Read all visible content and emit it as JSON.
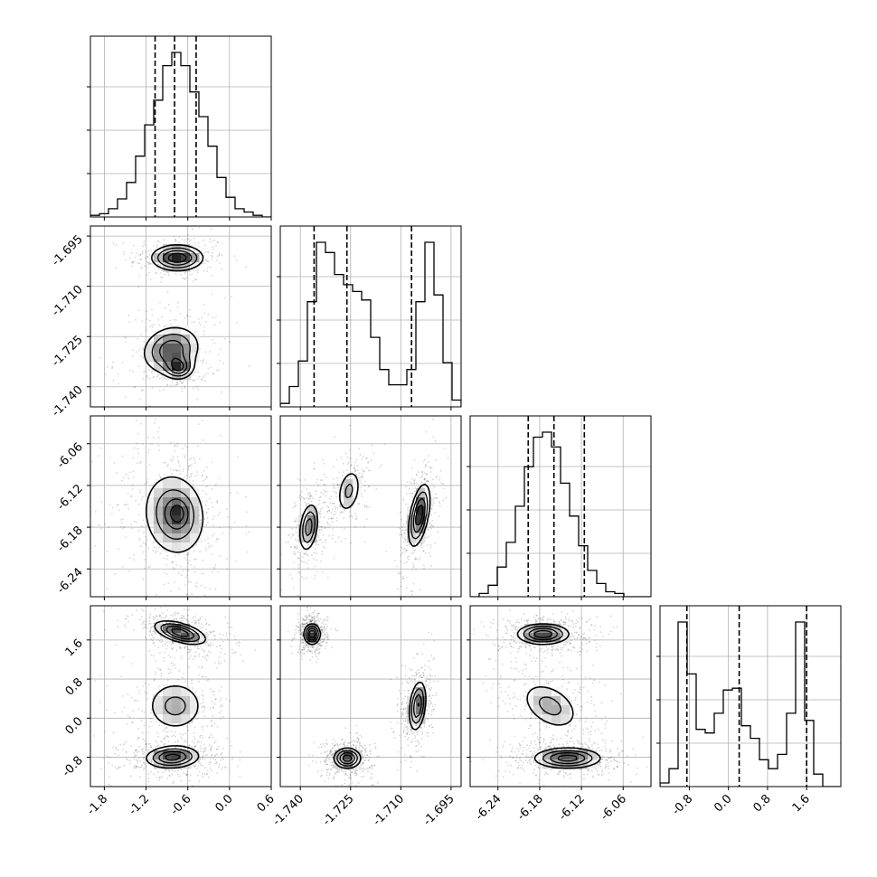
{
  "chart_data": {
    "type": "corner",
    "grid": true,
    "parameters": [
      {
        "range": [
          -2.0,
          0.6
        ],
        "ticks": [
          "-1.8",
          "-1.2",
          "-0.6",
          "0.0",
          "0.6"
        ],
        "tick_values": [
          -1.8,
          -1.2,
          -0.6,
          0.0,
          0.6
        ],
        "quantiles": [
          -1.07,
          -0.79,
          -0.48
        ],
        "hist": [
          0.01,
          0.02,
          0.05,
          0.11,
          0.21,
          0.37,
          0.56,
          0.71,
          0.92,
          1.0,
          0.92,
          0.76,
          0.61,
          0.43,
          0.24,
          0.12,
          0.05,
          0.03,
          0.01,
          0.0
        ]
      },
      {
        "range": [
          -1.746,
          -1.692
        ],
        "ticks": [
          "-1.740",
          "-1.725",
          "-1.710",
          "-1.695"
        ],
        "tick_values": [
          -1.74,
          -1.725,
          -1.71,
          -1.695
        ],
        "quantiles": [
          -1.7359,
          -1.7261,
          -1.7068
        ],
        "hist": [
          0.02,
          0.12,
          0.27,
          0.62,
          0.97,
          0.91,
          0.78,
          0.72,
          0.68,
          0.63,
          0.41,
          0.22,
          0.13,
          0.13,
          0.22,
          0.62,
          0.97,
          0.66,
          0.26,
          0.04
        ]
      },
      {
        "range": [
          -6.28,
          -6.02
        ],
        "ticks": [
          "-6.24",
          "-6.18",
          "-6.12",
          "-6.06"
        ],
        "tick_values": [
          -6.24,
          -6.18,
          -6.12,
          -6.06
        ],
        "quantiles": [
          -6.1965,
          -6.1595,
          -6.1158
        ],
        "hist": [
          0.0,
          0.02,
          0.07,
          0.18,
          0.33,
          0.55,
          0.79,
          0.97,
          1.0,
          0.91,
          0.69,
          0.49,
          0.31,
          0.16,
          0.08,
          0.03,
          0.02,
          0.0,
          0.0,
          0.0
        ]
      },
      {
        "range": [
          -1.4,
          2.3
        ],
        "ticks": [
          "-0.8",
          "0.0",
          "0.8",
          "1.6"
        ],
        "tick_values": [
          -0.8,
          0.0,
          0.8,
          1.6
        ],
        "quantiles": [
          -0.85,
          0.22,
          1.6
        ],
        "hist": [
          0.02,
          0.1,
          0.92,
          0.63,
          0.32,
          0.3,
          0.41,
          0.54,
          0.55,
          0.34,
          0.27,
          0.15,
          0.1,
          0.18,
          0.41,
          0.92,
          0.37,
          0.07,
          0.0,
          0.0
        ]
      }
    ],
    "pairs": [
      {
        "row": 1,
        "col": 0,
        "modes": [
          {
            "x": -0.75,
            "y": -1.7015,
            "sx": 0.23,
            "sy": 0.0024,
            "rho": 0.0,
            "w": 0.55
          },
          {
            "x": -0.84,
            "y": -1.729,
            "sx": 0.26,
            "sy": 0.0045,
            "rho": 0.15,
            "w": 0.45
          },
          {
            "x": -0.72,
            "y": -1.7345,
            "sx": 0.12,
            "sy": 0.002,
            "rho": 0.0,
            "w": 0.35
          }
        ]
      },
      {
        "row": 2,
        "col": 0,
        "modes": [
          {
            "x": -0.79,
            "y": -6.162,
            "sx": 0.3,
            "sy": 0.04,
            "rho": -0.1,
            "w": 1.0
          },
          {
            "x": -0.74,
            "y": -6.16,
            "sx": 0.1,
            "sy": 0.013,
            "rho": 0.0,
            "w": 0.45
          }
        ]
      },
      {
        "row": 2,
        "col": 1,
        "modes": [
          {
            "x": -1.7375,
            "y": -6.18,
            "sx": 0.0018,
            "sy": 0.022,
            "rho": 0.3,
            "w": 0.6
          },
          {
            "x": -1.7255,
            "y": -6.128,
            "sx": 0.0024,
            "sy": 0.022,
            "rho": 0.3,
            "w": 0.4
          },
          {
            "x": -1.7045,
            "y": -6.163,
            "sx": 0.002,
            "sy": 0.028,
            "rho": 0.5,
            "w": 0.75
          }
        ]
      },
      {
        "row": 3,
        "col": 0,
        "modes": [
          {
            "x": -0.71,
            "y": 1.75,
            "sx": 0.23,
            "sy": 0.15,
            "rho": -0.55,
            "w": 1.0
          },
          {
            "x": -0.78,
            "y": 0.25,
            "sx": 0.28,
            "sy": 0.35,
            "rho": 0.0,
            "w": 0.55
          },
          {
            "x": -0.82,
            "y": -0.8,
            "sx": 0.24,
            "sy": 0.14,
            "rho": 0.1,
            "w": 0.95
          }
        ]
      },
      {
        "row": 3,
        "col": 1,
        "modes": [
          {
            "x": -1.7365,
            "y": 1.72,
            "sx": 0.0015,
            "sy": 0.13,
            "rho": 0.0,
            "w": 1.0
          },
          {
            "x": -1.726,
            "y": -0.82,
            "sx": 0.0025,
            "sy": 0.13,
            "rho": 0.0,
            "w": 0.95
          },
          {
            "x": -1.705,
            "y": 0.25,
            "sx": 0.0016,
            "sy": 0.32,
            "rho": 0.3,
            "w": 0.85
          }
        ]
      },
      {
        "row": 3,
        "col": 2,
        "modes": [
          {
            "x": -6.175,
            "y": 1.72,
            "sx": 0.023,
            "sy": 0.13,
            "rho": 0.0,
            "w": 1.0
          },
          {
            "x": -6.165,
            "y": 0.25,
            "sx": 0.028,
            "sy": 0.33,
            "rho": -0.4,
            "w": 0.55
          },
          {
            "x": -6.14,
            "y": -0.82,
            "sx": 0.03,
            "sy": 0.13,
            "rho": 0.0,
            "w": 0.95
          }
        ]
      }
    ]
  }
}
